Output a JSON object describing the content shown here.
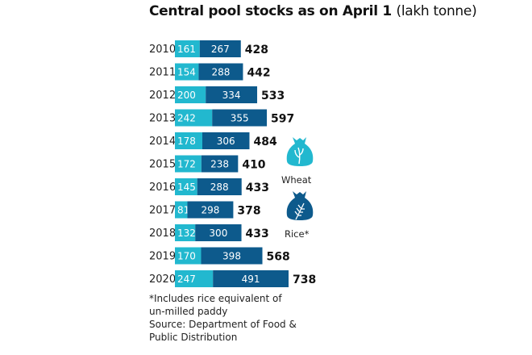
{
  "chart_data": {
    "type": "bar",
    "orientation": "horizontal-stacked",
    "title": "Central pool stocks as on April 1",
    "unit": "(lakh tonne)",
    "categories": [
      "2010",
      "2011",
      "2012",
      "2013",
      "2014",
      "2015",
      "2016",
      "2017",
      "2018",
      "2019",
      "2020"
    ],
    "series": [
      {
        "name": "Wheat",
        "color": "#22b8cf",
        "values": [
          161,
          154,
          200,
          242,
          178,
          172,
          145,
          81,
          132,
          170,
          247
        ]
      },
      {
        "name": "Rice*",
        "color": "#0d5a8c",
        "values": [
          267,
          288,
          334,
          355,
          306,
          238,
          288,
          298,
          300,
          398,
          491
        ]
      }
    ],
    "totals": [
      428,
      442,
      533,
      597,
      484,
      410,
      433,
      378,
      433,
      568,
      738
    ],
    "legend": [
      "Wheat",
      "Rice*"
    ],
    "legend_position": "right",
    "notes": [
      "*Includes rice equivalent of",
      "un-milled paddy",
      "Source: Department of Food &",
      "Public Distribution"
    ]
  }
}
